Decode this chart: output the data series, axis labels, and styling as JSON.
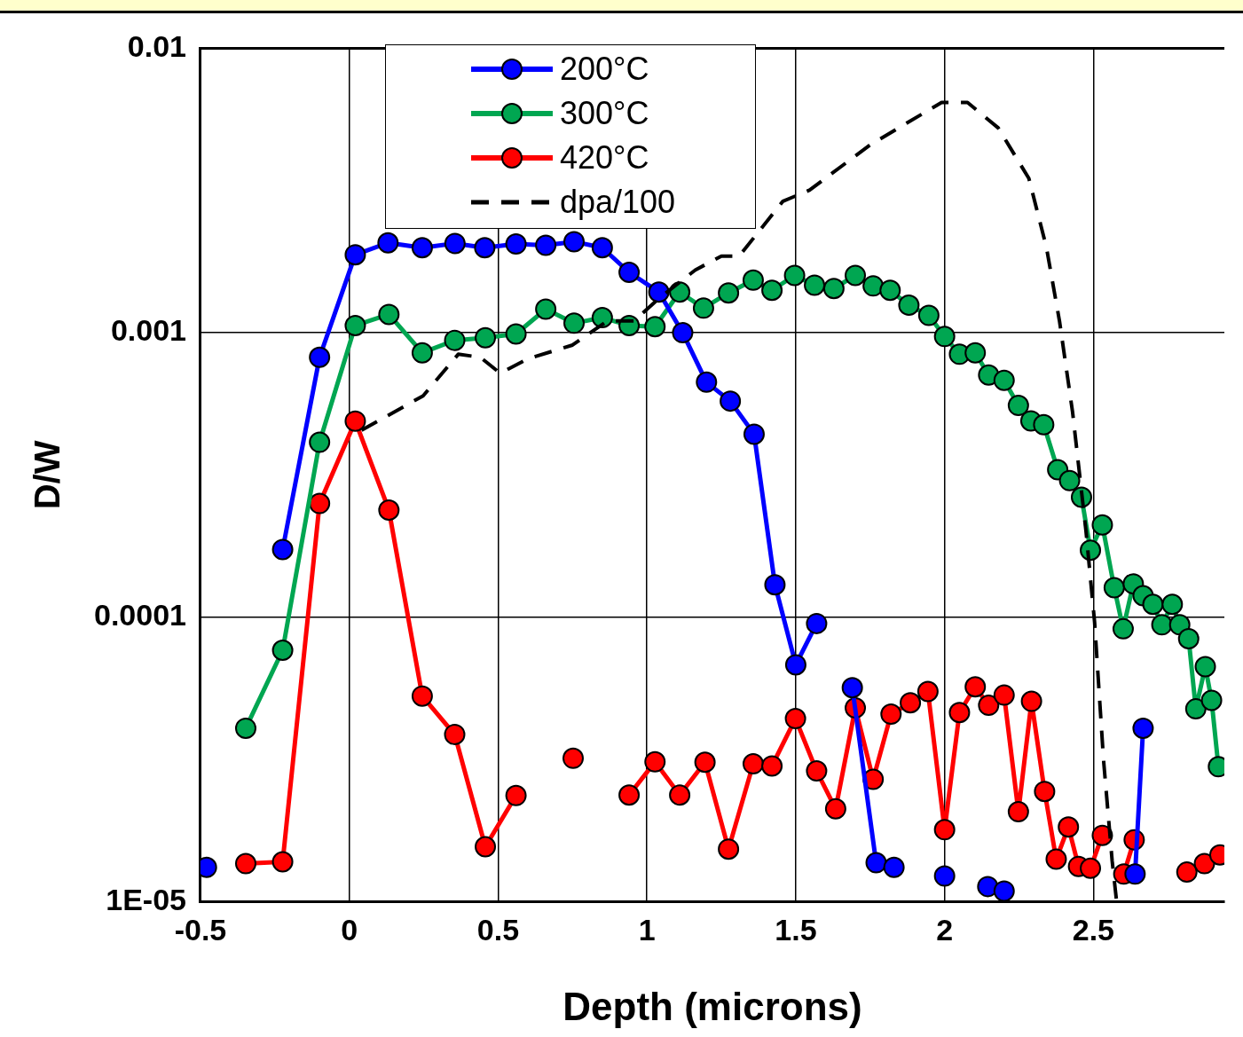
{
  "chart_data": {
    "type": "line",
    "xlabel": "Depth (microns)",
    "ylabel": "D/W",
    "log": "y",
    "grid": true,
    "legend": "top left",
    "marker": "circle",
    "xlim": [
      -0.5,
      2.94
    ],
    "xticks": [
      -0.5,
      0,
      0.5,
      1,
      1.5,
      2,
      2.5
    ],
    "ylim": [
      1e-05,
      0.01
    ],
    "yticks": [
      {
        "value": 1e-05,
        "label": "1E-05"
      },
      0.0001,
      0.001,
      0.01
    ],
    "series": [
      {
        "name": "200°C",
        "color": "#0000ff",
        "x": [
          -0.48,
          -0.35,
          -0.224,
          -0.1,
          0.02,
          0.13,
          0.245,
          0.355,
          0.455,
          0.56,
          0.66,
          0.755,
          0.85,
          0.94,
          1.04,
          1.12,
          1.2,
          1.28,
          1.36,
          1.43,
          1.5,
          1.57,
          1.634,
          1.69,
          1.77,
          1.83,
          1.92,
          2.0,
          2.07,
          2.145,
          2.2,
          2.4,
          2.64,
          2.667
        ],
        "values": [
          1.32e-05,
          null,
          0.000173,
          0.00082,
          0.00188,
          0.00207,
          0.00199,
          0.00206,
          0.00199,
          0.00205,
          0.00203,
          0.00209,
          0.00199,
          0.00163,
          0.00139,
          0.001,
          0.00067,
          0.000575,
          0.00044,
          0.00013,
          6.8e-05,
          9.5e-05,
          null,
          5.65e-05,
          1.37e-05,
          1.32e-05,
          null,
          1.23e-05,
          null,
          1.13e-05,
          1.09e-05,
          null,
          1.25e-05,
          4.07e-05
        ]
      },
      {
        "name": "300°C",
        "color": "#00a651",
        "x": [
          -0.348,
          -0.224,
          -0.1,
          0.02,
          0.133,
          0.245,
          0.354,
          0.457,
          0.56,
          0.66,
          0.755,
          0.85,
          0.94,
          1.027,
          1.11,
          1.19,
          1.274,
          1.357,
          1.42,
          1.496,
          1.563,
          1.628,
          1.7,
          1.76,
          1.817,
          1.88,
          1.947,
          2.0,
          2.05,
          2.103,
          2.148,
          2.2,
          2.248,
          2.29,
          2.333,
          2.38,
          2.42,
          2.46,
          2.49,
          2.53,
          2.57,
          2.6,
          2.634,
          2.667,
          2.7,
          2.73,
          2.765,
          2.79,
          2.82,
          2.844,
          2.876,
          2.897,
          2.92
        ],
        "values": [
          4.07e-05,
          7.65e-05,
          0.000412,
          0.00106,
          0.00116,
          0.00085,
          0.00094,
          0.00096,
          0.00099,
          0.00121,
          0.00108,
          0.00113,
          0.00106,
          0.00105,
          0.00139,
          0.00122,
          0.00138,
          0.00153,
          0.00141,
          0.00159,
          0.00147,
          0.00143,
          0.00159,
          0.00146,
          0.00141,
          0.00125,
          0.00115,
          0.00097,
          0.00084,
          0.00085,
          0.00071,
          0.00068,
          0.000555,
          0.00049,
          0.000475,
          0.00033,
          0.000302,
          0.000264,
          0.000172,
          0.000211,
          0.000127,
          9.1e-05,
          0.000131,
          0.000119,
          0.000111,
          9.4e-05,
          0.000111,
          9.4e-05,
          8.4e-05,
          4.76e-05,
          6.7e-05,
          5.1e-05,
          2.98e-05
        ]
      },
      {
        "name": "420°C",
        "color": "#ff0000",
        "x": [
          -0.348,
          -0.224,
          -0.1,
          0.02,
          0.133,
          0.245,
          0.354,
          0.457,
          0.56,
          0.65,
          0.752,
          0.85,
          0.94,
          1.027,
          1.11,
          1.195,
          1.274,
          1.357,
          1.42,
          1.499,
          1.57,
          1.634,
          1.7,
          1.76,
          1.82,
          1.885,
          1.944,
          2.0,
          2.05,
          2.103,
          2.148,
          2.2,
          2.248,
          2.292,
          2.336,
          2.375,
          2.416,
          2.45,
          2.49,
          2.53,
          2.56,
          2.602,
          2.637,
          2.7,
          2.814,
          2.845,
          2.873,
          2.9,
          2.925
        ],
        "values": [
          1.36e-05,
          1.38e-05,
          0.000251,
          0.000489,
          0.000238,
          5.28e-05,
          3.87e-05,
          1.56e-05,
          2.36e-05,
          null,
          3.19e-05,
          null,
          2.37e-05,
          3.1e-05,
          2.37e-05,
          3.09e-05,
          1.53e-05,
          3.05e-05,
          3e-05,
          4.4e-05,
          2.88e-05,
          2.12e-05,
          4.8e-05,
          2.69e-05,
          4.56e-05,
          5e-05,
          5.48e-05,
          1.79e-05,
          4.62e-05,
          5.69e-05,
          4.9e-05,
          5.32e-05,
          2.07e-05,
          5.06e-05,
          2.44e-05,
          1.41e-05,
          1.83e-05,
          1.33e-05,
          1.31e-05,
          1.71e-05,
          null,
          1.25e-05,
          1.65e-05,
          null,
          1.27e-05,
          null,
          1.36e-05,
          null,
          1.46e-05
        ]
      },
      {
        "name": "dpa/100",
        "color": "#000000",
        "marker": "none",
        "line_style": "dashed",
        "x": [
          0.041,
          0.248,
          0.366,
          0.44,
          0.507,
          0.6,
          0.75,
          0.867,
          0.956,
          1.044,
          1.162,
          1.25,
          1.31,
          1.457,
          1.546,
          1.752,
          1.99,
          2.077,
          2.18,
          2.283,
          2.342,
          2.386,
          2.43,
          2.475,
          2.504,
          2.534,
          2.563,
          2.578
        ],
        "values": [
          0.000454,
          0.0006,
          0.00084,
          0.00082,
          0.00072,
          0.00081,
          0.000905,
          0.0011,
          0.0011,
          0.00133,
          0.00166,
          0.00186,
          0.00186,
          0.0029,
          0.00317,
          0.00459,
          0.00645,
          0.00645,
          0.00525,
          0.00349,
          0.002,
          0.0011,
          0.000526,
          0.000201,
          9.6e-05,
          3.15e-05,
          1.39e-05,
          1e-05
        ]
      }
    ]
  }
}
